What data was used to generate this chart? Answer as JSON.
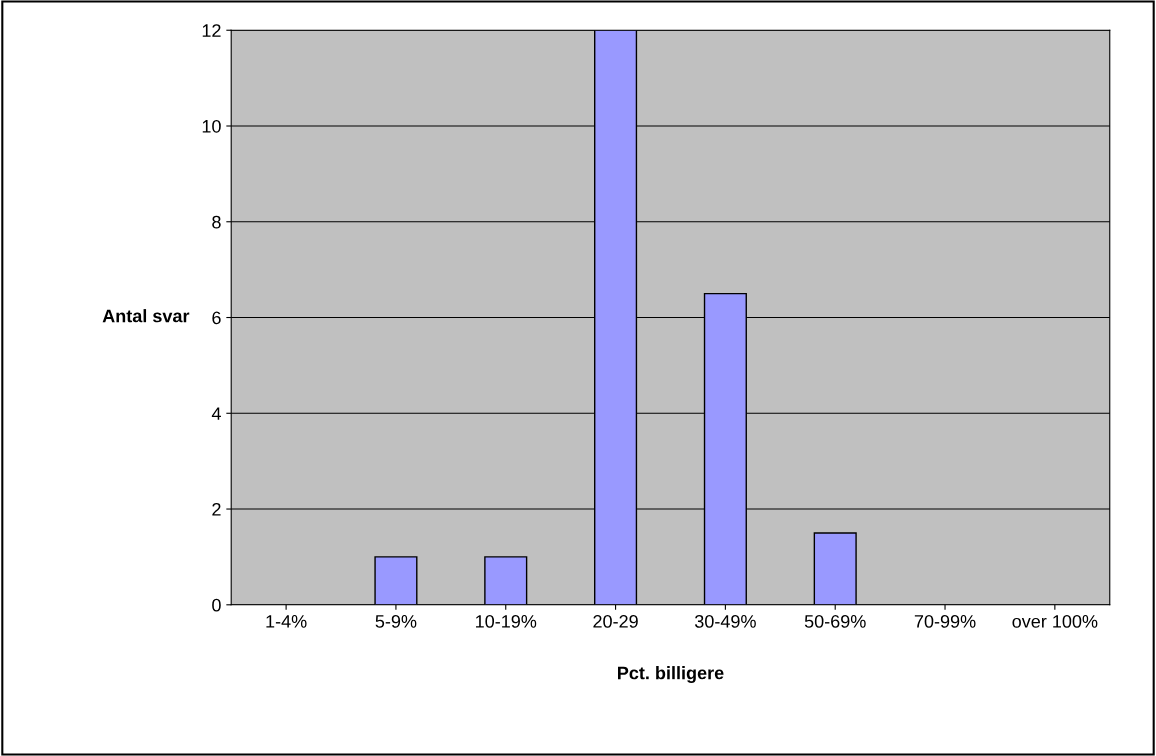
{
  "chart_data": {
    "type": "bar",
    "xlabel": "Pct. billigere",
    "ylabel": "Antal svar",
    "categories": [
      "1-4%",
      "5-9%",
      "10-19%",
      "20-29",
      "30-49%",
      "50-69%",
      "70-99%",
      "over 100%"
    ],
    "values": [
      0,
      1,
      1,
      12,
      6.5,
      1.5,
      0,
      0
    ],
    "color": "#9999ff",
    "ylim": [
      0,
      12
    ],
    "yticks": [
      0,
      2,
      4,
      6,
      8,
      10,
      12
    ],
    "grid": "y"
  }
}
